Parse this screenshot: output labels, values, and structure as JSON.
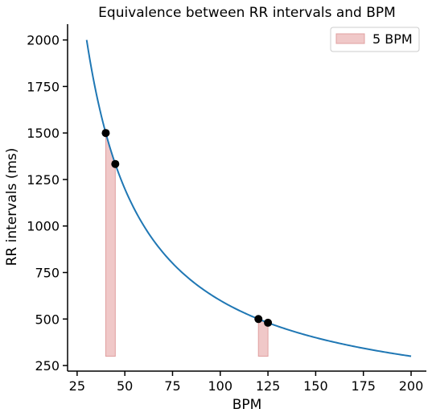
{
  "chart_data": {
    "type": "line",
    "title": "Equivalence between RR intervals and BPM",
    "xlabel": "BPM",
    "ylabel": "RR intervals (ms)",
    "xlim": [
      20,
      208
    ],
    "ylim": [
      220,
      2085
    ],
    "xticks": [
      25,
      50,
      75,
      100,
      125,
      150,
      175,
      200
    ],
    "yticks": [
      250,
      500,
      750,
      1000,
      1250,
      1500,
      1750,
      2000
    ],
    "grid": false,
    "legend_position": "top-right",
    "colors": {
      "curve": "#1f77b4",
      "band": "#f0c8c8",
      "band_edge": "#e0a0a0",
      "points": "#000000"
    },
    "curve": {
      "formula": "RR = 60000 / BPM",
      "x_range": [
        30,
        200
      ]
    },
    "bands": [
      {
        "x_from": 40,
        "x_to": 45,
        "y_bottom": 300,
        "label": "5 BPM"
      },
      {
        "x_from": 120,
        "x_to": 125,
        "y_bottom": 300,
        "label": ""
      }
    ],
    "points": [
      {
        "x": 40,
        "y": 1500
      },
      {
        "x": 45,
        "y": 1333.3
      },
      {
        "x": 120,
        "y": 500
      },
      {
        "x": 125,
        "y": 480
      }
    ],
    "legend": [
      {
        "label": "5 BPM",
        "kind": "band"
      }
    ]
  }
}
